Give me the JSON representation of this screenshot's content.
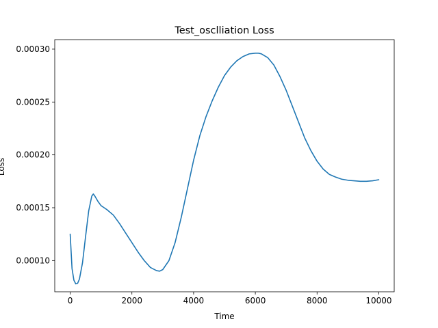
{
  "chart_data": {
    "type": "line",
    "title": "Test_osclliation Loss",
    "xlabel": "Time",
    "ylabel": "Loss",
    "xlim": [
      -500,
      10500
    ],
    "ylim": [
      7.05e-05,
      0.000309
    ],
    "grid": false,
    "x_ticks": [
      0,
      2000,
      4000,
      6000,
      8000,
      10000
    ],
    "x_tick_labels": [
      "0",
      "2000",
      "4000",
      "6000",
      "8000",
      "10000"
    ],
    "y_ticks": [
      0.0001,
      0.00015,
      0.0002,
      0.00025,
      0.0003
    ],
    "y_tick_labels": [
      "0.00010",
      "0.00015",
      "0.00020",
      "0.00025",
      "0.00030"
    ],
    "series": [
      {
        "color": "#1f77b4",
        "x": [
          0,
          60,
          120,
          180,
          240,
          300,
          400,
          500,
          600,
          700,
          750,
          800,
          900,
          1000,
          1100,
          1200,
          1400,
          1600,
          1800,
          2000,
          2200,
          2400,
          2600,
          2800,
          2900,
          3000,
          3200,
          3400,
          3600,
          3800,
          4000,
          4200,
          4400,
          4600,
          4800,
          5000,
          5200,
          5400,
          5600,
          5800,
          6000,
          6100,
          6200,
          6400,
          6600,
          6800,
          7000,
          7200,
          7400,
          7600,
          7800,
          8000,
          8200,
          8400,
          8600,
          8800,
          9000,
          9200,
          9400,
          9600,
          9800,
          10000
        ],
        "values": [
          0.000125,
          9.25e-05,
          8.15e-05,
          7.8e-05,
          7.85e-05,
          8.25e-05,
          9.8e-05,
          0.000123,
          0.000147,
          0.000161,
          0.000163,
          0.000161,
          0.000156,
          0.000152,
          0.00015,
          0.000148,
          0.000143,
          0.000135,
          0.000126,
          0.000117,
          0.000108,
          0.0001,
          9.35e-05,
          9.05e-05,
          9e-05,
          9.15e-05,
          0.0001,
          0.000117,
          0.000141,
          0.000168,
          0.000195,
          0.000218,
          0.000236,
          0.000251,
          0.000264,
          0.000275,
          0.000283,
          0.000289,
          0.000293,
          0.0002955,
          0.0002962,
          0.0002962,
          0.0002955,
          0.000292,
          0.000285,
          0.000274,
          0.000261,
          0.000246,
          0.000231,
          0.000216,
          0.000204,
          0.000194,
          0.0001865,
          0.0001815,
          0.000179,
          0.000177,
          0.000176,
          0.0001755,
          0.000175,
          0.000175,
          0.0001755,
          0.0001765
        ]
      }
    ]
  }
}
